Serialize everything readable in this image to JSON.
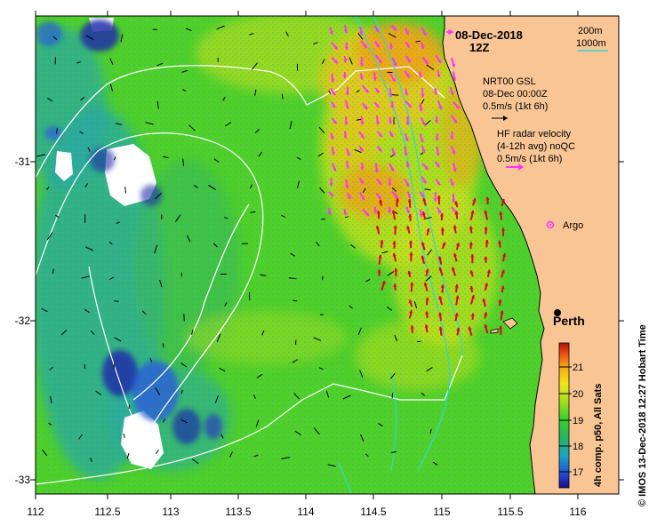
{
  "date": "08-Dec-2018",
  "hour": "12Z",
  "scale": {
    "short": "200m",
    "long": "1000m"
  },
  "model": {
    "name": "NRT00 GSL",
    "time": "08-Dec 00:00Z",
    "ref_speed": "0.5m/s (1kt 6h)"
  },
  "radar": {
    "title": "HF radar velocity",
    "subtitle": "(4-12h avg) noQC",
    "ref_speed": "0.5m/s (1kt 6h)"
  },
  "argo_label": "Argo",
  "city_label": "Perth",
  "x_ticks": [
    "112",
    "112.5",
    "113",
    "113.5",
    "114",
    "114.5",
    "115",
    "115.5",
    "116"
  ],
  "y_ticks": [
    "-31",
    "-32",
    "-33"
  ],
  "colorbar": {
    "label": "4h comp. p50, All Sats",
    "ticks": [
      "17",
      "18",
      "19",
      "20",
      "21"
    ],
    "min": 16.5,
    "max": 21.8
  },
  "credit": "© IMOS 13-Dec-2018 12:27 Hobart Time",
  "colors": {
    "land": "#f9c595",
    "ocean_green": "#4fd02a",
    "ocean_yellow": "#c7e01b",
    "ocean_orange": "#f0a216",
    "ocean_cyan": "#2aa7a8",
    "cloud": "#ffffff",
    "radar_north": "#ff33ff",
    "radar_south": "#e8001c",
    "contour_cyan": "#2fd6d6"
  }
}
